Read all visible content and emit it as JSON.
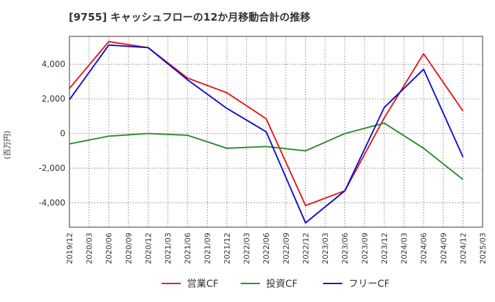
{
  "chart_data": {
    "type": "line",
    "title": "[9755]  キャッシュフローの12か月移動合計の推移",
    "ylabel": "(百万円)",
    "xlabel": "",
    "ylim": [
      -5400,
      5600
    ],
    "yticks": [
      -4000,
      -2000,
      0,
      2000,
      4000
    ],
    "ytick_labels": [
      "-4,000",
      "-2,000",
      "0",
      "2,000",
      "4,000"
    ],
    "x_labels": [
      "2019/12",
      "2020/03",
      "2020/06",
      "2020/09",
      "2020/12",
      "2021/03",
      "2021/06",
      "2021/09",
      "2021/12",
      "2022/03",
      "2022/06",
      "2022/09",
      "2022/12",
      "2023/03",
      "2023/06",
      "2023/09",
      "2023/12",
      "2024/03",
      "2024/06",
      "2024/09",
      "2024/12",
      "2025/03"
    ],
    "grid": true,
    "legend_position": "bottom",
    "series": [
      {
        "name": "営業CF",
        "color": "#e41a1c",
        "points": [
          [
            "2019/12",
            2600
          ],
          [
            "2020/06",
            5300
          ],
          [
            "2020/12",
            4950
          ],
          [
            "2021/06",
            3200
          ],
          [
            "2021/12",
            2350
          ],
          [
            "2022/06",
            850
          ],
          [
            "2022/12",
            -4150
          ],
          [
            "2023/06",
            -3300
          ],
          [
            "2023/12",
            900
          ],
          [
            "2024/06",
            4600
          ],
          [
            "2024/12",
            1300
          ]
        ]
      },
      {
        "name": "投資CF",
        "color": "#2e8b2e",
        "points": [
          [
            "2019/12",
            -600
          ],
          [
            "2020/06",
            -150
          ],
          [
            "2020/12",
            0
          ],
          [
            "2021/06",
            -100
          ],
          [
            "2021/12",
            -850
          ],
          [
            "2022/06",
            -750
          ],
          [
            "2022/12",
            -1000
          ],
          [
            "2023/06",
            0
          ],
          [
            "2023/12",
            600
          ],
          [
            "2024/06",
            -850
          ],
          [
            "2024/12",
            -2650
          ]
        ]
      },
      {
        "name": "フリーCF",
        "color": "#1010cc",
        "points": [
          [
            "2019/12",
            1950
          ],
          [
            "2020/06",
            5100
          ],
          [
            "2020/12",
            4950
          ],
          [
            "2021/06",
            3100
          ],
          [
            "2021/12",
            1450
          ],
          [
            "2022/06",
            100
          ],
          [
            "2022/12",
            -5150
          ],
          [
            "2023/06",
            -3300
          ],
          [
            "2023/12",
            1500
          ],
          [
            "2024/06",
            3700
          ],
          [
            "2024/12",
            -1350
          ]
        ]
      }
    ]
  }
}
